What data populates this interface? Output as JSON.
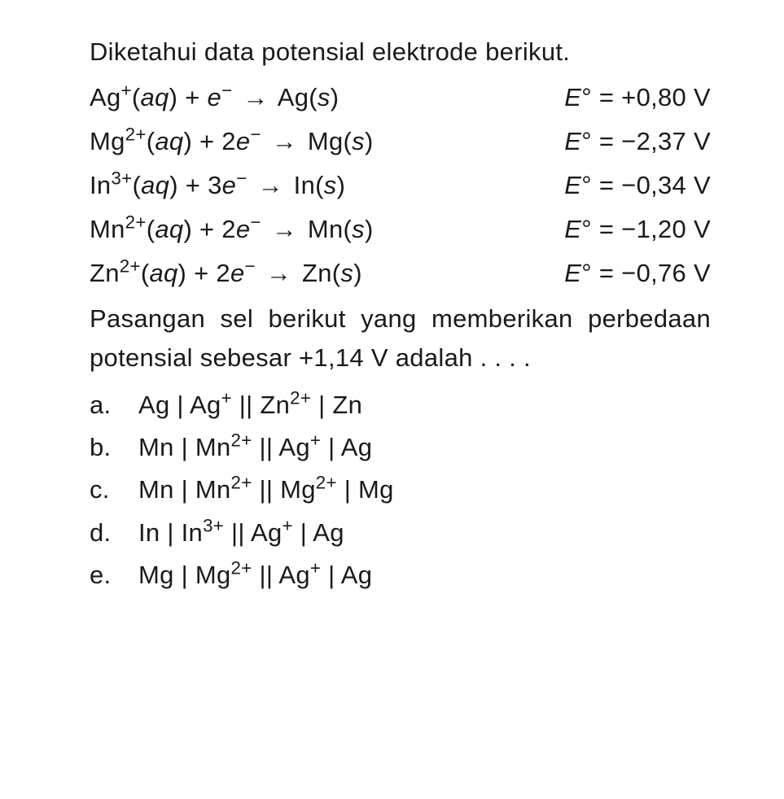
{
  "intro": "Diketahui data potensial elektrode berikut.",
  "equations": [
    {
      "species": "Ag",
      "charge": "+",
      "electrons": "",
      "product": "Ag",
      "potential": "+0,80"
    },
    {
      "species": "Mg",
      "charge": "2+",
      "electrons": "2",
      "product": "Mg",
      "potential": "−2,37"
    },
    {
      "species": "In",
      "charge": "3+",
      "electrons": "3",
      "product": "In",
      "potential": "−0,34"
    },
    {
      "species": "Mn",
      "charge": "2+",
      "electrons": "2",
      "product": "Mn",
      "potential": "−1,20"
    },
    {
      "species": "Zn",
      "charge": "2+",
      "electrons": "2",
      "product": "Zn",
      "potential": "−0,76"
    }
  ],
  "question_line1": "Pasangan sel berikut yang memberikan",
  "question_line2": "perbedaan potensial sebesar +1,14 V",
  "question_line3": "adalah . . . .",
  "options": [
    {
      "letter": "a.",
      "m1": "Ag",
      "c1": "",
      "m2": "Ag",
      "c2": "+",
      "m3": "Zn",
      "c3": "2+",
      "m4": "Zn",
      "c4": ""
    },
    {
      "letter": "b.",
      "m1": "Mn",
      "c1": "",
      "m2": "Mn",
      "c2": "2+",
      "m3": "Ag",
      "c3": "+",
      "m4": "Ag",
      "c4": ""
    },
    {
      "letter": "c.",
      "m1": "Mn",
      "c1": "",
      "m2": "Mn",
      "c2": "2+",
      "m3": "Mg",
      "c3": "2+",
      "m4": "Mg",
      "c4": ""
    },
    {
      "letter": "d.",
      "m1": "In",
      "c1": "",
      "m2": "In",
      "c2": "3+",
      "m3": "Ag",
      "c3": "+",
      "m4": "Ag",
      "c4": ""
    },
    {
      "letter": "e.",
      "m1": "Mg",
      "c1": "",
      "m2": "Mg",
      "c2": "2+",
      "m3": "Ag",
      "c3": "+",
      "m4": "Ag",
      "c4": ""
    }
  ],
  "colors": {
    "text": "#1a1a1a",
    "background": "#ffffff"
  },
  "typography": {
    "base_fontsize": 31,
    "line_height": 1.55,
    "font_family": "Arial"
  }
}
